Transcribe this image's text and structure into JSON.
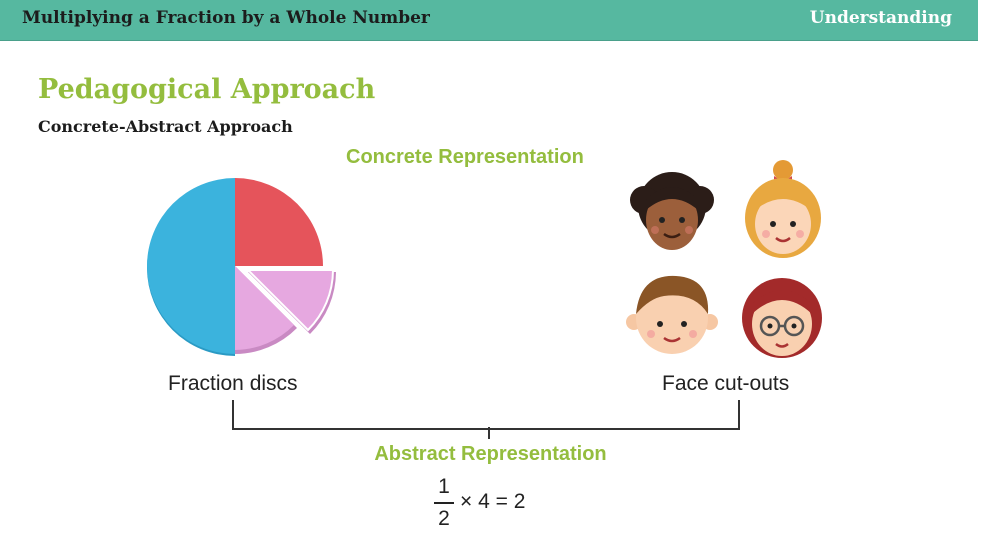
{
  "header": {
    "title": "Multiplying a Fraction by a Whole Number",
    "tag": "Understanding"
  },
  "main": {
    "heading": "Pedagogical Approach",
    "subheading": "Concrete-Abstract Approach",
    "concrete_label": "Concrete Representation",
    "abstract_label": "Abstract Representation",
    "disc_caption": "Fraction discs",
    "faces_caption": "Face cut-outs",
    "equation": {
      "numerator": "1",
      "denominator": "2",
      "expression": "× 4 =  2"
    }
  },
  "colors": {
    "header_bg": "#56b8a0",
    "accent_green": "#94bd3e",
    "disc_blue": "#3bb3dd",
    "disc_red": "#e5545b",
    "disc_pink": "#e6a8e0"
  },
  "icons": [
    "fraction-disc-icon",
    "face-curly-hair-icon",
    "face-girl-bow-icon",
    "face-boy-icon",
    "face-glasses-icon"
  ]
}
